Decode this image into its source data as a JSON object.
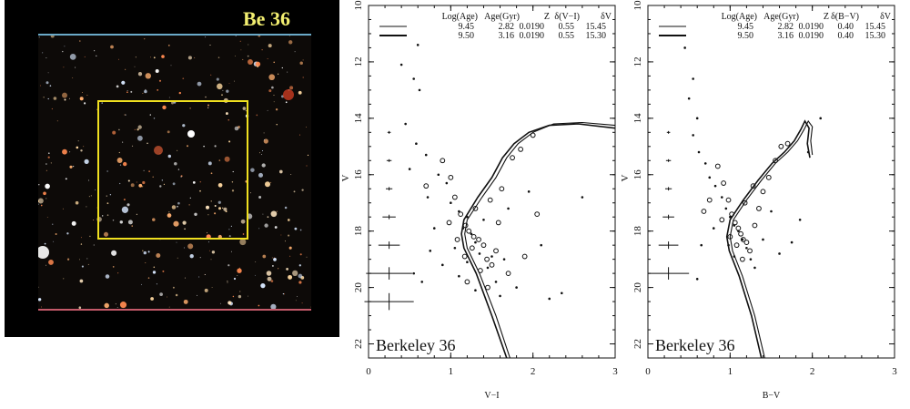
{
  "image_panel": {
    "title": "Be 36"
  },
  "colors": {
    "panel_bg": "#000000",
    "title": "#f2ee70",
    "box": "#f0e020",
    "ink": "#111111"
  },
  "chart_data": [
    {
      "type": "scatter",
      "title": "",
      "cluster_label": "Berkeley 36",
      "xlabel": "V−I",
      "ylabel": "V",
      "xlim": [
        0,
        3
      ],
      "ylim": [
        22.5,
        10
      ],
      "x_ticks": [
        "0",
        "1",
        "2",
        "3"
      ],
      "y_ticks": [
        "10",
        "12",
        "14",
        "16",
        "18",
        "20",
        "22"
      ],
      "legend_header": [
        "Log(Age)",
        "Age(Gyr)",
        "Z",
        "δ(V−I)",
        "δV"
      ],
      "legend_rows": [
        [
          "9.45",
          "2.82",
          "0.0190",
          "0.55",
          "15.45"
        ],
        [
          "9.50",
          "3.16",
          "0.0190",
          "0.55",
          "15.30"
        ]
      ],
      "error_bars": [
        {
          "v": 14.5,
          "xerr": 0.02,
          "yerr": 0.02
        },
        {
          "v": 15.5,
          "xerr": 0.03,
          "yerr": 0.03
        },
        {
          "v": 16.5,
          "xerr": 0.04,
          "yerr": 0.06
        },
        {
          "v": 17.5,
          "xerr": 0.08,
          "yerr": 0.08
        },
        {
          "v": 18.5,
          "xerr": 0.13,
          "yerr": 0.13
        },
        {
          "v": 19.5,
          "xerr": 0.28,
          "yerr": 0.22
        },
        {
          "v": 20.5,
          "xerr": 0.3,
          "yerr": 0.3
        }
      ],
      "series": [
        {
          "values": [
            [
              0.4,
              12.1
            ],
            [
              0.55,
              12.6
            ],
            [
              0.6,
              11.4
            ],
            [
              0.62,
              13.0
            ],
            [
              0.45,
              14.2
            ],
            [
              0.58,
              14.9
            ],
            [
              0.7,
              15.3
            ],
            [
              0.5,
              15.8
            ],
            [
              0.85,
              16.0
            ],
            [
              0.95,
              16.3
            ],
            [
              0.72,
              16.8
            ],
            [
              1.0,
              17.0
            ],
            [
              1.1,
              17.3
            ],
            [
              1.2,
              17.5
            ],
            [
              1.15,
              17.9
            ],
            [
              1.25,
              18.1
            ],
            [
              1.3,
              18.4
            ],
            [
              1.05,
              18.6
            ],
            [
              1.35,
              18.8
            ],
            [
              1.2,
              19.1
            ],
            [
              1.45,
              19.3
            ],
            [
              1.1,
              19.6
            ],
            [
              1.55,
              19.8
            ],
            [
              1.3,
              20.1
            ],
            [
              1.6,
              20.3
            ],
            [
              1.8,
              20.0
            ],
            [
              0.65,
              19.8
            ],
            [
              0.9,
              19.2
            ],
            [
              1.95,
              16.6
            ],
            [
              2.1,
              18.5
            ],
            [
              2.2,
              20.4
            ],
            [
              2.35,
              20.2
            ],
            [
              2.6,
              16.8
            ],
            [
              0.55,
              19.5
            ],
            [
              1.7,
              17.2
            ],
            [
              1.4,
              17.6
            ],
            [
              1.5,
              18.9
            ],
            [
              1.65,
              19.0
            ],
            [
              0.8,
              17.9
            ],
            [
              0.75,
              18.7
            ]
          ]
        },
        {
          "values": [
            [
              0.9,
              15.5
            ],
            [
              1.0,
              16.1
            ],
            [
              1.05,
              16.8
            ],
            [
              1.12,
              17.4
            ],
            [
              1.18,
              17.8
            ],
            [
              1.22,
              18.0
            ],
            [
              1.28,
              18.2
            ],
            [
              1.34,
              18.3
            ],
            [
              1.4,
              18.5
            ],
            [
              1.26,
              18.6
            ],
            [
              1.17,
              18.9
            ],
            [
              1.44,
              19.0
            ],
            [
              1.5,
              19.2
            ],
            [
              1.36,
              19.4
            ],
            [
              1.62,
              16.5
            ],
            [
              1.75,
              15.4
            ],
            [
              1.85,
              15.1
            ],
            [
              2.0,
              14.6
            ],
            [
              1.3,
              17.2
            ],
            [
              1.55,
              18.7
            ],
            [
              1.58,
              17.7
            ],
            [
              1.08,
              18.3
            ],
            [
              1.48,
              16.9
            ],
            [
              0.98,
              17.7
            ],
            [
              1.7,
              19.5
            ],
            [
              1.9,
              18.9
            ],
            [
              2.05,
              17.4
            ],
            [
              1.2,
              19.8
            ],
            [
              1.45,
              20.0
            ],
            [
              0.7,
              16.4
            ]
          ]
        }
      ],
      "isochrones": [
        {
          "name": "9.45",
          "values": [
            [
              1.72,
              22.5
            ],
            [
              1.55,
              21.0
            ],
            [
              1.35,
              19.5
            ],
            [
              1.2,
              18.6
            ],
            [
              1.17,
              18.1
            ],
            [
              1.2,
              17.6
            ],
            [
              1.38,
              16.8
            ],
            [
              1.55,
              16.1
            ],
            [
              1.68,
              15.4
            ],
            [
              1.82,
              14.9
            ],
            [
              2.0,
              14.5
            ],
            [
              2.25,
              14.2
            ],
            [
              2.6,
              14.15
            ],
            [
              3.0,
              14.25
            ]
          ]
        },
        {
          "name": "9.50",
          "values": [
            [
              1.68,
              22.5
            ],
            [
              1.5,
              21.0
            ],
            [
              1.31,
              19.5
            ],
            [
              1.16,
              18.6
            ],
            [
              1.13,
              18.1
            ],
            [
              1.16,
              17.6
            ],
            [
              1.33,
              16.8
            ],
            [
              1.5,
              16.1
            ],
            [
              1.63,
              15.4
            ],
            [
              1.77,
              14.9
            ],
            [
              1.95,
              14.5
            ],
            [
              2.2,
              14.25
            ],
            [
              2.55,
              14.2
            ],
            [
              3.0,
              14.35
            ]
          ]
        }
      ]
    },
    {
      "type": "scatter",
      "title": "",
      "cluster_label": "Berkeley 36",
      "xlabel": "B−V",
      "ylabel": "V",
      "xlim": [
        0,
        3
      ],
      "ylim": [
        22.5,
        10
      ],
      "x_ticks": [
        "0",
        "1",
        "2",
        "3"
      ],
      "y_ticks": [
        "10",
        "12",
        "14",
        "16",
        "18",
        "20",
        "22"
      ],
      "legend_header": [
        "Log(Age)",
        "Age(Gyr)",
        "Z",
        "δ(B−V)",
        "δV"
      ],
      "legend_rows": [
        [
          "9.45",
          "2.82",
          "0.0190",
          "0.40",
          "15.45"
        ],
        [
          "9.50",
          "3.16",
          "0.0190",
          "0.40",
          "15.30"
        ]
      ],
      "error_bars": [
        {
          "v": 14.5,
          "xerr": 0.02,
          "yerr": 0.02
        },
        {
          "v": 15.5,
          "xerr": 0.03,
          "yerr": 0.03
        },
        {
          "v": 16.5,
          "xerr": 0.04,
          "yerr": 0.06
        },
        {
          "v": 17.5,
          "xerr": 0.07,
          "yerr": 0.08
        },
        {
          "v": 18.5,
          "xerr": 0.12,
          "yerr": 0.13
        },
        {
          "v": 19.5,
          "xerr": 0.25,
          "yerr": 0.22
        }
      ],
      "series": [
        {
          "values": [
            [
              0.45,
              11.5
            ],
            [
              0.55,
              12.6
            ],
            [
              0.5,
              13.3
            ],
            [
              0.6,
              14.0
            ],
            [
              0.55,
              14.6
            ],
            [
              0.62,
              15.2
            ],
            [
              0.7,
              15.6
            ],
            [
              0.75,
              16.1
            ],
            [
              0.82,
              16.4
            ],
            [
              0.9,
              16.8
            ],
            [
              0.95,
              17.2
            ],
            [
              1.0,
              17.5
            ],
            [
              1.05,
              17.8
            ],
            [
              1.1,
              18.0
            ],
            [
              1.15,
              18.3
            ],
            [
              0.98,
              18.5
            ],
            [
              1.2,
              18.6
            ],
            [
              1.05,
              18.9
            ],
            [
              1.25,
              19.0
            ],
            [
              1.3,
              19.3
            ],
            [
              0.8,
              17.9
            ],
            [
              0.65,
              18.5
            ],
            [
              1.4,
              18.3
            ],
            [
              1.6,
              18.8
            ],
            [
              1.75,
              18.4
            ],
            [
              1.85,
              17.6
            ],
            [
              2.1,
              14.0
            ],
            [
              1.95,
              15.2
            ],
            [
              0.6,
              19.7
            ],
            [
              1.5,
              17.3
            ]
          ]
        },
        {
          "values": [
            [
              0.85,
              15.7
            ],
            [
              0.92,
              16.3
            ],
            [
              0.98,
              16.9
            ],
            [
              1.02,
              17.4
            ],
            [
              1.06,
              17.7
            ],
            [
              1.1,
              17.9
            ],
            [
              1.13,
              18.1
            ],
            [
              1.16,
              18.3
            ],
            [
              1.08,
              18.5
            ],
            [
              1.2,
              18.4
            ],
            [
              1.24,
              18.7
            ],
            [
              1.0,
              18.2
            ],
            [
              1.3,
              17.8
            ],
            [
              1.35,
              17.2
            ],
            [
              1.4,
              16.6
            ],
            [
              1.47,
              16.1
            ],
            [
              1.55,
              15.5
            ],
            [
              1.62,
              15.0
            ],
            [
              0.9,
              17.6
            ],
            [
              1.15,
              19.0
            ],
            [
              0.75,
              16.9
            ],
            [
              1.28,
              16.4
            ],
            [
              1.18,
              17.0
            ],
            [
              0.68,
              17.3
            ],
            [
              1.7,
              14.9
            ]
          ]
        }
      ],
      "isochrones": [
        {
          "name": "9.45",
          "values": [
            [
              1.42,
              22.5
            ],
            [
              1.3,
              21.0
            ],
            [
              1.15,
              19.6
            ],
            [
              1.03,
              18.7
            ],
            [
              1.0,
              18.2
            ],
            [
              1.04,
              17.6
            ],
            [
              1.2,
              16.9
            ],
            [
              1.38,
              16.2
            ],
            [
              1.55,
              15.6
            ],
            [
              1.7,
              15.2
            ],
            [
              1.82,
              14.8
            ],
            [
              1.9,
              14.4
            ],
            [
              1.95,
              14.1
            ],
            [
              2.0,
              14.3
            ],
            [
              1.98,
              14.8
            ],
            [
              2.0,
              15.3
            ]
          ]
        },
        {
          "name": "9.50",
          "values": [
            [
              1.38,
              22.5
            ],
            [
              1.26,
              21.0
            ],
            [
              1.11,
              19.6
            ],
            [
              0.99,
              18.7
            ],
            [
              0.96,
              18.2
            ],
            [
              1.0,
              17.6
            ],
            [
              1.16,
              16.9
            ],
            [
              1.34,
              16.2
            ],
            [
              1.51,
              15.6
            ],
            [
              1.66,
              15.2
            ],
            [
              1.78,
              14.8
            ],
            [
              1.86,
              14.4
            ],
            [
              1.91,
              14.1
            ],
            [
              1.96,
              14.35
            ],
            [
              1.94,
              14.9
            ],
            [
              1.97,
              15.4
            ]
          ]
        }
      ]
    }
  ]
}
